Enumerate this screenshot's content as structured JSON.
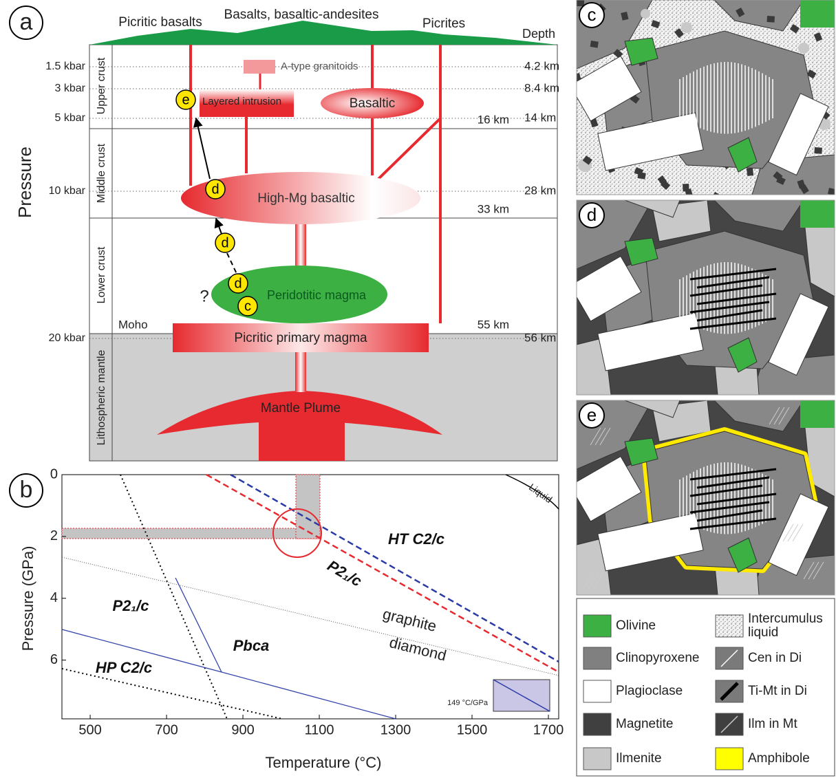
{
  "panel_a": {
    "label": "a",
    "volcanics": [
      "Picritic basalts",
      "Basalts, basaltic-andesites",
      "Picrites"
    ],
    "depth_header": "Depth",
    "axis_title": "Pressure",
    "pressures": [
      "1.5 kbar",
      "3 kbar",
      "5 kbar",
      "10 kbar",
      "20 kbar"
    ],
    "depths": [
      "4.2 km",
      "8.4 km",
      "14 km",
      "28 km",
      "56 km"
    ],
    "boundary_depths": [
      "16 km",
      "33 km",
      "55 km"
    ],
    "moho": "Moho",
    "layers": [
      "Upper crust",
      "Middle crust",
      "Lower crust",
      "Lithospheric mantle"
    ],
    "bodies": {
      "granitoids": "A-type granitoids",
      "layered_intrusion": "Layered intrusion",
      "basaltic": "Basaltic",
      "high_mg": "High-Mg basaltic",
      "peridotitic": "Peridotitic magma",
      "primary": "Picritic primary magma",
      "plume": "Mantle Plume"
    },
    "stages": [
      "e",
      "d",
      "d",
      "d",
      "c"
    ],
    "uncertain": "?"
  },
  "panel_b": {
    "label": "b",
    "x_label": "Temperature (°C)",
    "y_label": "Pressure (GPa)",
    "xlim": [
      426,
      1727
    ],
    "ylim": [
      0,
      7.9
    ],
    "xticks": [
      500,
      700,
      900,
      1100,
      1300,
      1500,
      1700
    ],
    "yticks": [
      0,
      2,
      4,
      6
    ],
    "fields": [
      "HT C2/c",
      "P2₁/c",
      "P2₁/c",
      "Pbca",
      "HP C2/c"
    ],
    "graphite": "graphite",
    "diamond": "diamond",
    "liquid": "Liquid",
    "gradient": "149 °C/GPa"
  },
  "panel_c": {
    "label": "c"
  },
  "panel_d": {
    "label": "d"
  },
  "panel_e": {
    "label": "e"
  },
  "legend": [
    "Olivine",
    "Clinopyroxene",
    "Plagioclase",
    "Magnetite",
    "Ilmenite",
    "Intercumulus liquid",
    "Cen in Di",
    "Ti-Mt in Di",
    "Ilm in Mt",
    "Amphibole"
  ]
}
